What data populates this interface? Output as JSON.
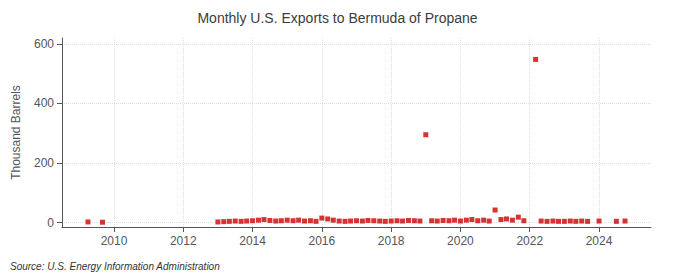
{
  "chart_data": {
    "type": "scatter",
    "title": "Monthly U.S. Exports to Bermuda of Propane",
    "ylabel": "Thousand Barrels",
    "annotations": [
      "Source: U.S. Energy Information Administration"
    ],
    "color": "#cc0000",
    "marker": "square",
    "grid": true,
    "xlim": [
      2008.5,
      2025.5
    ],
    "xticks": [
      2010,
      2012,
      2014,
      2016,
      2018,
      2020,
      2022,
      2024
    ],
    "ylim": [
      -15,
      620
    ],
    "yticks": [
      0,
      200,
      400,
      600
    ],
    "x": [
      2009.25,
      2009.67,
      2013.0,
      2013.17,
      2013.33,
      2013.5,
      2013.67,
      2013.83,
      2014.0,
      2014.17,
      2014.33,
      2014.5,
      2014.67,
      2014.83,
      2015.0,
      2015.17,
      2015.33,
      2015.5,
      2015.67,
      2015.83,
      2016.0,
      2016.17,
      2016.33,
      2016.5,
      2016.67,
      2016.83,
      2017.0,
      2017.17,
      2017.33,
      2017.5,
      2017.67,
      2017.83,
      2018.0,
      2018.17,
      2018.33,
      2018.5,
      2018.67,
      2018.83,
      2019.0,
      2019.17,
      2019.33,
      2019.5,
      2019.67,
      2019.83,
      2020.0,
      2020.17,
      2020.33,
      2020.5,
      2020.67,
      2020.83,
      2021.0,
      2021.17,
      2021.33,
      2021.5,
      2021.67,
      2021.83,
      2022.17,
      2022.33,
      2022.5,
      2022.67,
      2022.83,
      2023.0,
      2023.17,
      2023.33,
      2023.5,
      2023.67,
      2024.0,
      2024.5,
      2024.75
    ],
    "values": [
      2,
      1,
      2,
      3,
      4,
      5,
      4,
      5,
      6,
      8,
      10,
      7,
      5,
      6,
      8,
      6,
      8,
      5,
      6,
      4,
      15,
      12,
      8,
      5,
      4,
      5,
      6,
      5,
      7,
      6,
      5,
      4,
      5,
      6,
      5,
      7,
      6,
      5,
      295,
      6,
      5,
      7,
      6,
      8,
      5,
      8,
      10,
      6,
      8,
      5,
      42,
      10,
      12,
      8,
      18,
      6,
      548,
      5,
      4,
      5,
      4,
      4,
      5,
      4,
      5,
      4,
      5,
      4,
      5
    ]
  }
}
